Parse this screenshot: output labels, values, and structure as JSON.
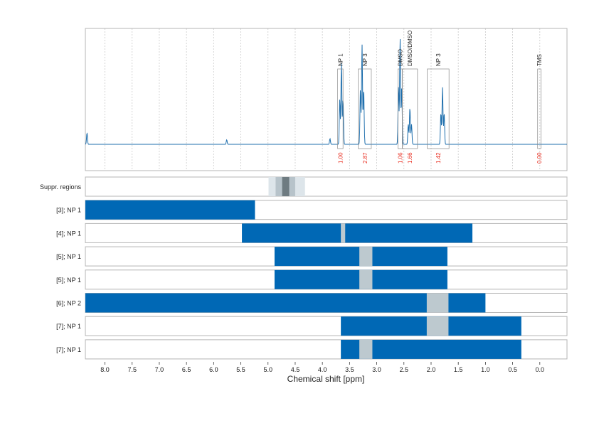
{
  "chart_data": {
    "type": "nmr-spectrum-with-range-bars",
    "xlabel": "Chemical shift [ppm]",
    "x_ticks": [
      "8.0",
      "7.5",
      "7.0",
      "6.5",
      "6.0",
      "5.5",
      "5.0",
      "4.5",
      "4.0",
      "3.5",
      "3.0",
      "2.5",
      "2.0",
      "1.5",
      "1.0",
      "0.5",
      "0.0"
    ],
    "x_range_ppm": [
      8.36,
      -0.5
    ],
    "x_axis_reversed": true,
    "grid": true,
    "colors": {
      "spectrum": "#1f6fad",
      "bar": "#0068b5",
      "overlap": "#bdc9cf",
      "integral": "#e8291b",
      "suppr_light": "#dde5ea",
      "suppr_mid": "#b7c3ca",
      "suppr_dark": "#6e7b81"
    },
    "spectrum_peaks": [
      {
        "ppm": 3.65,
        "height": 0.72
      },
      {
        "ppm": 3.27,
        "height": 0.88
      },
      {
        "ppm": 2.57,
        "height": 0.93
      },
      {
        "ppm": 2.39,
        "height": 0.32
      },
      {
        "ppm": 1.79,
        "height": 0.5
      },
      {
        "ppm": 8.33,
        "height": 0.1
      },
      {
        "ppm": 5.76,
        "height": 0.04
      },
      {
        "ppm": 3.86,
        "height": 0.05
      }
    ],
    "integration_regions": [
      {
        "label": "NP 1",
        "integral": "1.00",
        "from_ppm": 3.72,
        "to_ppm": 3.62
      },
      {
        "label": "NP 3",
        "integral": "2.87",
        "from_ppm": 3.34,
        "to_ppm": 3.1
      },
      {
        "label": "DMSO",
        "integral": "1.06",
        "from_ppm": 2.61,
        "to_ppm": 2.53
      },
      {
        "label": "DMSO/DMSO",
        "integral": "1.66",
        "from_ppm": 2.53,
        "to_ppm": 2.25
      },
      {
        "label": "NP 3",
        "integral": "1.42",
        "from_ppm": 2.07,
        "to_ppm": 1.67
      },
      {
        "label": "TMS",
        "integral": "0.00",
        "from_ppm": 0.04,
        "to_ppm": -0.02
      }
    ],
    "suppressed_regions": {
      "label": "Suppr. regions",
      "bands": [
        {
          "from_ppm": 4.99,
          "to_ppm": 4.32,
          "level": "light"
        },
        {
          "from_ppm": 4.86,
          "to_ppm": 4.5,
          "level": "mid"
        },
        {
          "from_ppm": 4.74,
          "to_ppm": 4.61,
          "level": "dark"
        }
      ]
    },
    "range_rows": [
      {
        "label": "[3]; NP 1",
        "from_ppm": 8.36,
        "to_ppm": 5.24,
        "overlap": []
      },
      {
        "label": "[4]; NP 1",
        "from_ppm": 5.48,
        "to_ppm": 1.24,
        "overlap": [
          [
            3.66,
            3.58
          ]
        ]
      },
      {
        "label": "[5]; NP 1",
        "from_ppm": 4.88,
        "to_ppm": 1.7,
        "overlap": [
          [
            3.32,
            3.08
          ]
        ]
      },
      {
        "label": "[5]; NP 1",
        "from_ppm": 4.88,
        "to_ppm": 1.7,
        "overlap": [
          [
            3.32,
            3.08
          ]
        ]
      },
      {
        "label": "[6]; NP 2",
        "from_ppm": 8.36,
        "to_ppm": 1.0,
        "overlap": [
          [
            2.08,
            1.68
          ]
        ]
      },
      {
        "label": "[7]; NP 1",
        "from_ppm": 3.66,
        "to_ppm": 0.34,
        "overlap": [
          [
            2.08,
            1.68
          ]
        ]
      },
      {
        "label": "[7]; NP 1",
        "from_ppm": 3.66,
        "to_ppm": 0.34,
        "overlap": [
          [
            3.32,
            3.08
          ]
        ]
      }
    ]
  }
}
